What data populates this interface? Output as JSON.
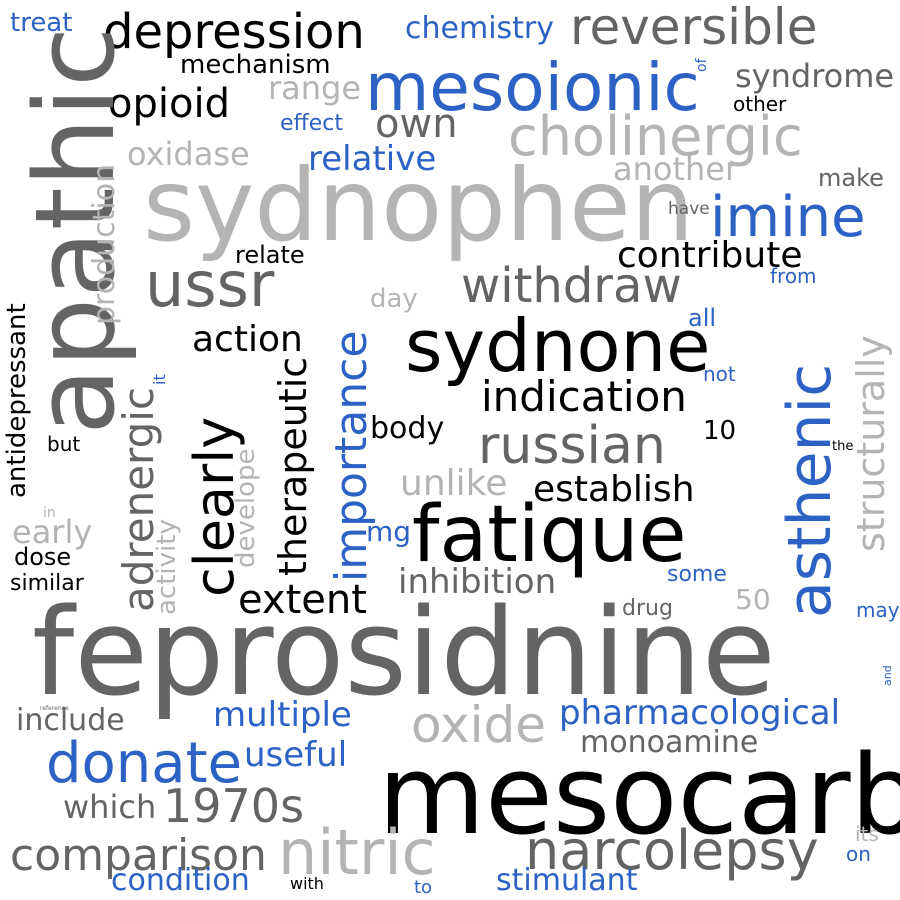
{
  "canvas": {
    "background": "#ffffff"
  },
  "palette": {
    "black": "#000000",
    "dark_gray": "#646464",
    "light_gray": "#b4b4b4",
    "blue": "#2d62c5"
  },
  "words": {
    "treat": "treat",
    "depression": "depression",
    "chemistry": "chemistry",
    "reversible": "reversible",
    "mechanism": "mechanism",
    "mesoionic": "mesoionic",
    "of": "of",
    "syndrome": "syndrome",
    "range": "range",
    "opioid": "opioid",
    "other": "other",
    "effect": "effect",
    "own": "own",
    "cholinergic": "cholinergic",
    "apathic": "apathic",
    "production": "production",
    "oxidase": "oxidase",
    "relative": "relative",
    "another": "another",
    "make": "make",
    "sydnophen": "sydnophen",
    "have": "have",
    "imine": "imine",
    "relate": "relate",
    "contribute": "contribute",
    "antidepressant": "antidepressant",
    "ussr": "ussr",
    "from": "from",
    "withdraw": "withdraw",
    "day": "day",
    "all": "all",
    "importance": "importance",
    "action": "action",
    "sydnone": "sydnone",
    "structurally": "structurally",
    "adrenergic": "adrenergic",
    "it": "it",
    "asthenic": "asthenic",
    "not": "not",
    "therapeutic": "therapeutic",
    "indication": "indication",
    "clearly": "clearly",
    "body": "body",
    "10": "10",
    "but": "but",
    "develope": "develope",
    "russian": "russian",
    "the": "the",
    "unlike": "unlike",
    "establish": "establish",
    "activity": "activity",
    "in": "in",
    "early": "early",
    "mg": "mg",
    "fatique": "fatique",
    "dose": "dose",
    "similar": "similar",
    "inhibition": "inhibition",
    "some": "some",
    "extent": "extent",
    "50": "50",
    "drug": "drug",
    "may": "may",
    "feprosidnine": "feprosidnine",
    "and": "and",
    "reference": "reference",
    "include": "include",
    "multiple": "multiple",
    "oxide": "oxide",
    "pharmacological": "pharmacological",
    "monoamine": "monoamine",
    "donate": "donate",
    "useful": "useful",
    "mesocarb": "mesocarb",
    "which": "which",
    "1970s": "1970s",
    "its": "its",
    "comparison": "comparison",
    "nitric": "nitric",
    "narcolepsy": "narcolepsy",
    "on": "on",
    "condition": "condition",
    "with": "with",
    "to": "to",
    "stimulant": "stimulant"
  }
}
